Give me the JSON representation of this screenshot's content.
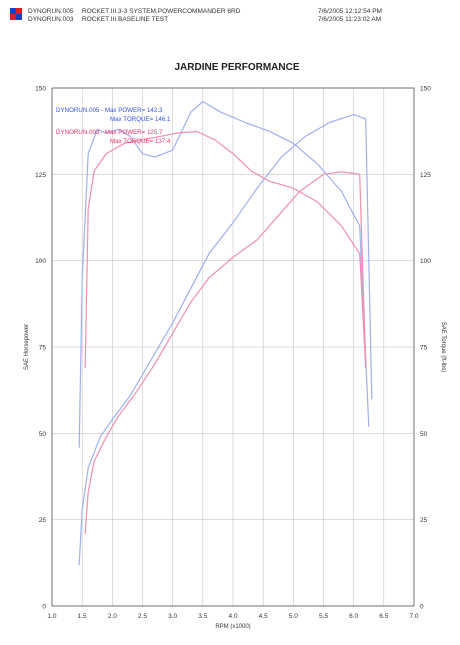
{
  "header": {
    "lines": [
      {
        "id": "DYNORUN.005",
        "desc": "ROCKET III 3-3 SYSTEM,POWERCOMMANDER 6RD",
        "timestamp": "7/6/2005 12:12:54 PM"
      },
      {
        "id": "DYNORUN.003",
        "desc": "ROCKET III BASELINE TEST",
        "timestamp": "7/6/2005 11:23:02 AM"
      }
    ],
    "logo_colors": [
      "#1a3fbf",
      "#d4202e"
    ]
  },
  "chart_data": {
    "type": "line",
    "title": "JARDINE PERFORMANCE",
    "xlabel": "RPM (x1000)",
    "ylabel_left": "SAE Horsepower",
    "ylabel_right": "SAE Torque (ft-lbs)",
    "xlim": [
      1.0,
      7.0
    ],
    "ylim": [
      0,
      150
    ],
    "x_ticks": [
      "1.0",
      "1.5",
      "2.0",
      "2.5",
      "3.0",
      "3.5",
      "4.0",
      "4.5",
      "5.0",
      "5.5",
      "6.0",
      "6.5",
      "7.0"
    ],
    "y_ticks_left": [
      "0",
      "25",
      "50",
      "75",
      "100",
      "125",
      "150"
    ],
    "y_ticks_right": [
      "0",
      "25",
      "50",
      "75",
      "100",
      "125",
      "150"
    ],
    "grid": true,
    "legend": [
      {
        "text": "DYNORUN.005 - Max POWER= 142.3",
        "color": "#3355ee"
      },
      {
        "text": "Max TORQUE= 146.1",
        "color": "#3355ee"
      },
      {
        "text": "DYNORUN.003 - Max POWER= 125.7",
        "color": "#ee3366"
      },
      {
        "text": "Max TORQUE= 137.4",
        "color": "#ee3366"
      }
    ],
    "series": [
      {
        "run": "DYNORUN.005",
        "kind": "power",
        "color": "#9fb0f0",
        "x": [
          1.45,
          1.5,
          1.6,
          1.8,
          2.0,
          2.3,
          2.6,
          3.0,
          3.3,
          3.6,
          4.0,
          4.4,
          4.8,
          5.2,
          5.6,
          6.0,
          6.2,
          6.3
        ],
        "y": [
          12,
          28,
          40,
          49,
          54,
          61,
          70,
          82,
          92,
          102,
          111,
          121,
          130,
          136,
          140,
          142.3,
          141,
          60
        ]
      },
      {
        "run": "DYNORUN.005",
        "kind": "torque",
        "color": "#9fb0f0",
        "x": [
          1.45,
          1.5,
          1.6,
          1.75,
          1.9,
          2.1,
          2.3,
          2.5,
          2.7,
          3.0,
          3.3,
          3.5,
          3.8,
          4.2,
          4.6,
          5.0,
          5.4,
          5.8,
          6.1,
          6.25
        ],
        "y": [
          46,
          95,
          131,
          138,
          137,
          138,
          136,
          131,
          130,
          132,
          143,
          146.1,
          143,
          140,
          137.5,
          134,
          128,
          120,
          110,
          52
        ]
      },
      {
        "run": "DYNORUN.003",
        "kind": "power",
        "color": "#f08fae",
        "x": [
          1.55,
          1.6,
          1.7,
          1.9,
          2.1,
          2.4,
          2.7,
          3.0,
          3.3,
          3.6,
          4.0,
          4.4,
          4.8,
          5.1,
          5.5,
          5.8,
          6.1,
          6.2
        ],
        "y": [
          21,
          33,
          42,
          49,
          55,
          62,
          70,
          79,
          88,
          95,
          101,
          106,
          114,
          120,
          125,
          125.7,
          125,
          70
        ]
      },
      {
        "run": "DYNORUN.003",
        "kind": "torque",
        "color": "#f08fae",
        "x": [
          1.55,
          1.6,
          1.7,
          1.9,
          2.2,
          2.5,
          2.8,
          3.1,
          3.4,
          3.7,
          4.0,
          4.3,
          4.6,
          5.0,
          5.4,
          5.8,
          6.1,
          6.2
        ],
        "y": [
          69,
          115,
          126,
          131,
          134,
          135,
          136,
          137,
          137.4,
          135,
          131,
          126,
          123,
          121,
          117,
          110,
          102,
          69
        ]
      }
    ]
  }
}
